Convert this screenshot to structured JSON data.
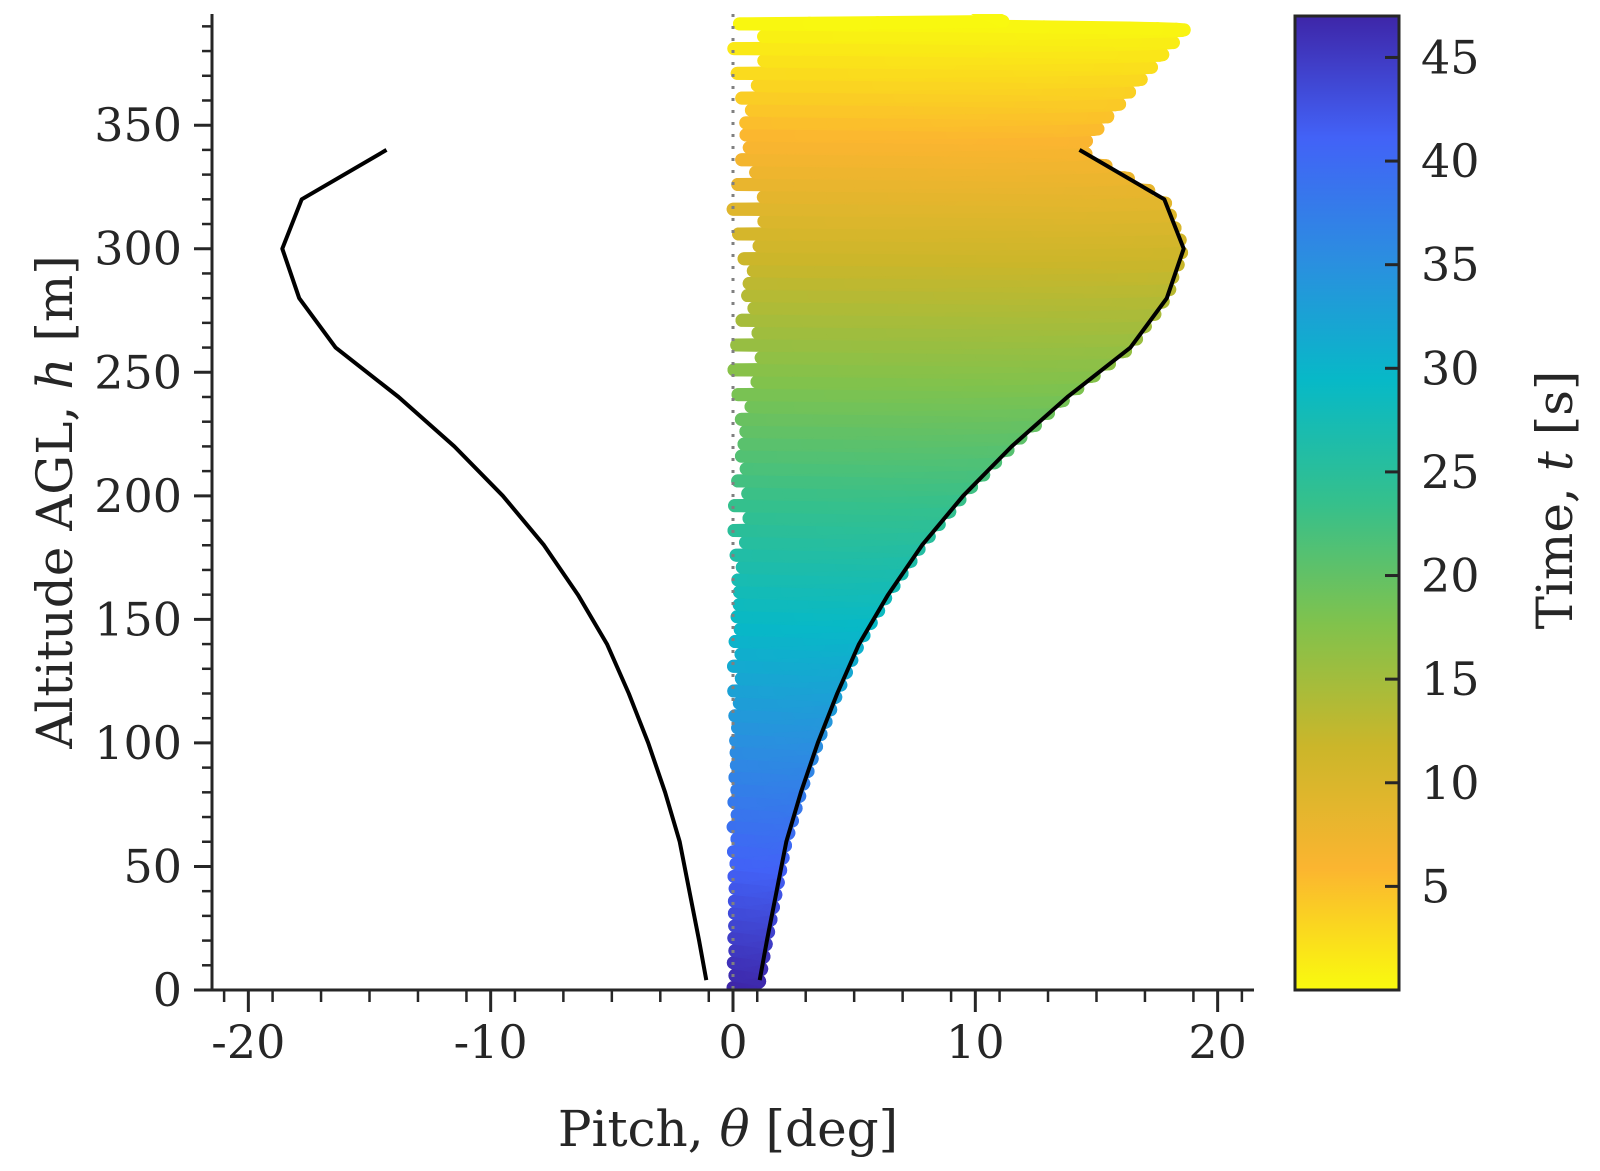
{
  "chart_data": {
    "type": "line",
    "xlabel": {
      "prefix": "Pitch, ",
      "symbol": "θ",
      "unit": " [deg]"
    },
    "ylabel": {
      "prefix": "Altitude AGL, ",
      "symbol": "h",
      "unit": " [m]"
    },
    "colorbar_label": {
      "prefix": "Time, ",
      "symbol": "t",
      "unit": " [s]"
    },
    "xlim": [
      -21.5,
      21.5
    ],
    "ylim": [
      0,
      395
    ],
    "clim": [
      0,
      47
    ],
    "x_ticks": [
      -20,
      -10,
      0,
      10,
      20
    ],
    "y_ticks": [
      0,
      50,
      100,
      150,
      200,
      250,
      300,
      350
    ],
    "colorbar_ticks": [
      5,
      10,
      15,
      20,
      25,
      30,
      35,
      40,
      45
    ],
    "reference_line": {
      "x": 0,
      "style": "dotted",
      "color": "#808080"
    },
    "colormap": [
      "#f9fb0e",
      "#fbb530",
      "#cbb62a",
      "#81c24c",
      "#35c08c",
      "#07b9c7",
      "#2b8ee0",
      "#4262f7",
      "#3e26a8"
    ],
    "series": [
      {
        "type": "envelope",
        "color": "#000000",
        "left": {
          "x": [
            -1.1,
            -1.4,
            -1.8,
            -2.2,
            -2.8,
            -3.5,
            -4.3,
            -5.2,
            -6.4,
            -7.8,
            -9.5,
            -11.5,
            -13.8,
            -16.4,
            -17.9,
            -18.6,
            -17.8,
            -14.3
          ],
          "y": [
            4,
            20,
            40,
            60,
            80,
            100,
            120,
            140,
            160,
            180,
            200,
            220,
            240,
            260,
            280,
            300,
            320,
            340
          ]
        },
        "right": {
          "x": [
            1.1,
            1.4,
            1.8,
            2.2,
            2.8,
            3.5,
            4.3,
            5.2,
            6.4,
            7.8,
            9.5,
            11.5,
            13.8,
            16.4,
            17.9,
            18.6,
            17.8,
            14.3
          ],
          "y": [
            4,
            20,
            40,
            60,
            80,
            100,
            120,
            140,
            160,
            180,
            200,
            220,
            240,
            260,
            280,
            300,
            320,
            340
          ]
        }
      },
      {
        "type": "oscillation",
        "color_by": "time",
        "t_start": 47,
        "t_end": 0.2,
        "y_start": 1,
        "y_end": 392,
        "end_x": 10,
        "end_y": 397,
        "period_m": 10
      }
    ]
  }
}
